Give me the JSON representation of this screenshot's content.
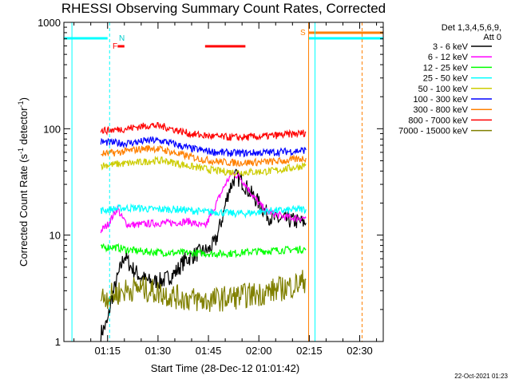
{
  "chart_data": {
    "type": "line",
    "title": "RHESSI Observing Summary Count Rates, Corrected",
    "xlabel": "Start Time (28-Dec-12 01:01:42)",
    "ylabel": "Corrected Count Rate (s",
    "ylabel_sup1": "-1",
    "ylabel_mid": " detector",
    "ylabel_sup2": "-1",
    "ylabel_end": ")",
    "yscale": "log",
    "ylim": [
      1,
      1000
    ],
    "xlim_minutes": [
      62,
      157
    ],
    "x_ticks": [
      {
        "minute": 75,
        "label": "01:15"
      },
      {
        "minute": 90,
        "label": "01:30"
      },
      {
        "minute": 105,
        "label": "01:45"
      },
      {
        "minute": 120,
        "label": "02:00"
      },
      {
        "minute": 135,
        "label": "02:15"
      },
      {
        "minute": 150,
        "label": "02:30"
      }
    ],
    "y_ticks": [
      {
        "value": 1,
        "label": "1"
      },
      {
        "value": 10,
        "label": "10"
      },
      {
        "value": 100,
        "label": "100"
      },
      {
        "value": 1000,
        "label": "1000"
      }
    ],
    "legend": {
      "header1": "Det 1,3,4,5,6,9,",
      "header2": "Att 0",
      "placement": "right"
    },
    "series": [
      {
        "name": "3 - 6 keV",
        "color": "#000000",
        "points": [
          [
            73,
            1.2
          ],
          [
            75,
            1.5
          ],
          [
            76,
            2.4
          ],
          [
            78,
            4.0
          ],
          [
            80,
            6.5
          ],
          [
            82,
            5.0
          ],
          [
            85,
            4.0
          ],
          [
            88,
            3.6
          ],
          [
            92,
            3.8
          ],
          [
            95,
            4.4
          ],
          [
            98,
            5.8
          ],
          [
            102,
            6.8
          ],
          [
            105,
            7.2
          ],
          [
            107,
            8.5
          ],
          [
            109,
            14
          ],
          [
            111,
            26
          ],
          [
            113,
            36
          ],
          [
            115,
            32
          ],
          [
            117,
            26
          ],
          [
            119,
            22
          ],
          [
            121,
            18
          ],
          [
            123,
            15
          ],
          [
            125,
            14
          ],
          [
            128,
            14
          ],
          [
            131,
            13.5
          ],
          [
            134,
            13
          ]
        ]
      },
      {
        "name": "6 - 12 keV",
        "color": "#ff00ff",
        "points": [
          [
            73,
            11
          ],
          [
            75,
            12.5
          ],
          [
            77,
            16
          ],
          [
            78,
            18
          ],
          [
            79,
            15
          ],
          [
            81,
            12.5
          ],
          [
            84,
            12.5
          ],
          [
            87,
            12.8
          ],
          [
            90,
            13
          ],
          [
            93,
            13
          ],
          [
            96,
            13.2
          ],
          [
            99,
            13.5
          ],
          [
            102,
            12.5
          ],
          [
            104,
            12
          ],
          [
            106,
            16
          ],
          [
            108,
            22
          ],
          [
            110,
            30
          ],
          [
            112,
            38
          ],
          [
            114,
            36
          ],
          [
            116,
            30
          ],
          [
            118,
            24
          ],
          [
            120,
            20
          ],
          [
            122,
            17
          ],
          [
            124,
            16
          ],
          [
            127,
            15
          ],
          [
            130,
            14.5
          ],
          [
            134,
            14.5
          ]
        ]
      },
      {
        "name": "12 - 25 keV",
        "color": "#00ff00",
        "points": [
          [
            73,
            7.5
          ],
          [
            76,
            7.8
          ],
          [
            79,
            7.5
          ],
          [
            82,
            7.2
          ],
          [
            86,
            7.0
          ],
          [
            90,
            6.9
          ],
          [
            94,
            6.8
          ],
          [
            98,
            6.8
          ],
          [
            102,
            6.8
          ],
          [
            106,
            6.7
          ],
          [
            110,
            6.7
          ],
          [
            114,
            6.8
          ],
          [
            118,
            7.0
          ],
          [
            122,
            7.1
          ],
          [
            126,
            7.2
          ],
          [
            130,
            7.3
          ],
          [
            134,
            7.4
          ]
        ]
      },
      {
        "name": "25 - 50 keV",
        "color": "#00ffff",
        "points": [
          [
            73,
            17
          ],
          [
            76,
            17.5
          ],
          [
            80,
            18
          ],
          [
            84,
            18
          ],
          [
            88,
            17.5
          ],
          [
            92,
            17.5
          ],
          [
            96,
            17.5
          ],
          [
            100,
            17
          ],
          [
            104,
            16.5
          ],
          [
            108,
            16.5
          ],
          [
            112,
            16
          ],
          [
            116,
            16
          ],
          [
            120,
            16.5
          ],
          [
            124,
            17
          ],
          [
            128,
            17
          ],
          [
            132,
            17.5
          ],
          [
            134,
            17.5
          ]
        ]
      },
      {
        "name": "50 - 100 keV",
        "color": "#cccc00",
        "points": [
          [
            73,
            45
          ],
          [
            76,
            46
          ],
          [
            80,
            47
          ],
          [
            84,
            48
          ],
          [
            88,
            50
          ],
          [
            92,
            50
          ],
          [
            96,
            47
          ],
          [
            100,
            44
          ],
          [
            104,
            42
          ],
          [
            108,
            40
          ],
          [
            112,
            39
          ],
          [
            116,
            39
          ],
          [
            120,
            39.5
          ],
          [
            124,
            40
          ],
          [
            128,
            42
          ],
          [
            132,
            44
          ],
          [
            134,
            46
          ]
        ]
      },
      {
        "name": "100 - 300 keV",
        "color": "#0000ff",
        "points": [
          [
            73,
            75
          ],
          [
            76,
            74
          ],
          [
            80,
            73
          ],
          [
            84,
            75
          ],
          [
            88,
            78
          ],
          [
            92,
            76
          ],
          [
            96,
            70
          ],
          [
            100,
            65
          ],
          [
            104,
            62
          ],
          [
            108,
            60
          ],
          [
            112,
            59
          ],
          [
            116,
            59
          ],
          [
            120,
            59.5
          ],
          [
            124,
            60
          ],
          [
            128,
            61
          ],
          [
            132,
            62
          ],
          [
            134,
            63
          ]
        ]
      },
      {
        "name": "300 - 800 keV",
        "color": "#ff8000",
        "points": [
          [
            73,
            58
          ],
          [
            76,
            59
          ],
          [
            80,
            61
          ],
          [
            84,
            64
          ],
          [
            88,
            66
          ],
          [
            92,
            63
          ],
          [
            96,
            58
          ],
          [
            100,
            54
          ],
          [
            104,
            51
          ],
          [
            108,
            49
          ],
          [
            112,
            48
          ],
          [
            116,
            48
          ],
          [
            120,
            48.5
          ],
          [
            124,
            49
          ],
          [
            128,
            50
          ],
          [
            132,
            52
          ],
          [
            134,
            53
          ]
        ]
      },
      {
        "name": "800 - 7000 keV",
        "color": "#ff0000",
        "points": [
          [
            73,
            96
          ],
          [
            76,
            97
          ],
          [
            80,
            100
          ],
          [
            84,
            104
          ],
          [
            88,
            108
          ],
          [
            92,
            104
          ],
          [
            96,
            96
          ],
          [
            100,
            89
          ],
          [
            104,
            86
          ],
          [
            108,
            84
          ],
          [
            112,
            83
          ],
          [
            116,
            83
          ],
          [
            120,
            84
          ],
          [
            124,
            86
          ],
          [
            128,
            88
          ],
          [
            132,
            90
          ],
          [
            134,
            92
          ]
        ]
      },
      {
        "name": "7000 - 15000 keV",
        "color": "#808000",
        "points": [
          [
            73,
            2.6
          ],
          [
            76,
            2.7
          ],
          [
            80,
            3.0
          ],
          [
            84,
            3.2
          ],
          [
            88,
            3.0
          ],
          [
            92,
            2.8
          ],
          [
            96,
            2.6
          ],
          [
            100,
            2.5
          ],
          [
            104,
            2.4
          ],
          [
            108,
            2.5
          ],
          [
            112,
            2.6
          ],
          [
            116,
            2.7
          ],
          [
            120,
            2.8
          ],
          [
            124,
            3.0
          ],
          [
            128,
            3.2
          ],
          [
            132,
            3.5
          ],
          [
            134,
            3.8
          ]
        ]
      }
    ],
    "annotations": {
      "N_label": "N",
      "F_label": "F",
      "S_label": "S"
    },
    "flags": {
      "night_cyan": [
        [
          62,
          75
        ],
        [
          134.8,
          157
        ]
      ],
      "flare_red": [
        [
          78,
          80
        ],
        [
          104,
          116
        ]
      ],
      "saa_orange": [
        134.8,
        157
      ]
    }
  },
  "timestamp": "22-Oct-2021 01:23"
}
